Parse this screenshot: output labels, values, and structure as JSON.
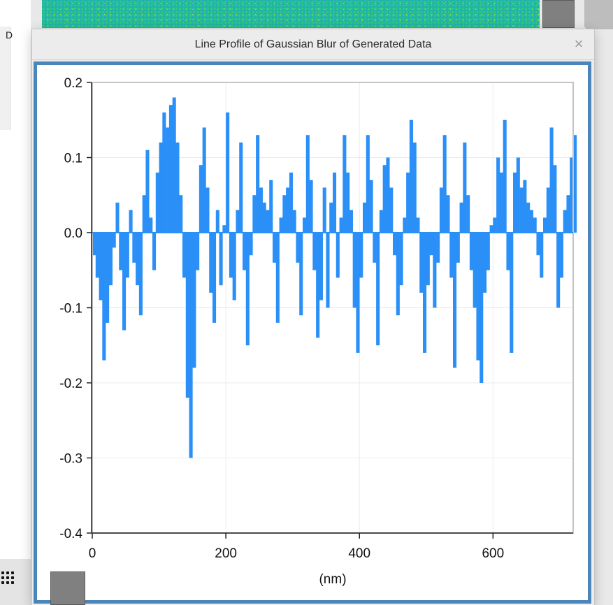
{
  "background": {
    "left_panel_letter": "D"
  },
  "window": {
    "title": "Line Profile of Gaussian Blur of Generated Data",
    "close_glyph": "×",
    "frame_color": "#4a86ba"
  },
  "chart_data": {
    "type": "bar",
    "title": "",
    "xlabel": "(nm)",
    "ylabel": "",
    "xlim": [
      0,
      720
    ],
    "ylim": [
      -0.4,
      0.2
    ],
    "x_ticks": [
      0,
      200,
      400,
      600
    ],
    "y_ticks": [
      0.2,
      0.1,
      0.0,
      -0.1,
      -0.2,
      -0.3,
      -0.4
    ],
    "y_tick_labels": [
      "0.2",
      "0.1",
      "0.0",
      "-0.1",
      "-0.2",
      "-0.3",
      "-0.4"
    ],
    "grid": true,
    "bar_color": "#2a8ff7",
    "series": [
      {
        "x_step": 5,
        "values": [
          -0.03,
          -0.06,
          -0.09,
          -0.17,
          -0.12,
          -0.07,
          -0.02,
          0.04,
          -0.05,
          -0.13,
          -0.06,
          0.03,
          -0.04,
          -0.07,
          -0.11,
          0.05,
          0.11,
          0.02,
          -0.05,
          0.08,
          0.12,
          0.16,
          0.14,
          0.17,
          0.18,
          0.12,
          0.05,
          -0.06,
          -0.22,
          -0.3,
          -0.18,
          -0.05,
          0.09,
          0.14,
          0.06,
          -0.08,
          -0.12,
          0.03,
          -0.07,
          0.01,
          0.16,
          -0.06,
          -0.09,
          0.03,
          0.12,
          -0.05,
          -0.15,
          -0.03,
          0.05,
          0.13,
          0.06,
          0.04,
          0.03,
          0.07,
          -0.04,
          -0.12,
          0.02,
          0.05,
          0.06,
          0.08,
          0.03,
          -0.04,
          -0.11,
          0.02,
          0.13,
          0.07,
          -0.05,
          -0.14,
          -0.09,
          0.06,
          -0.1,
          0.04,
          0.08,
          -0.06,
          0.02,
          0.13,
          0.08,
          0.03,
          -0.1,
          -0.16,
          -0.06,
          0.04,
          0.13,
          0.07,
          -0.04,
          -0.15,
          0.03,
          0.09,
          0.1,
          0.06,
          -0.03,
          -0.11,
          -0.07,
          0.02,
          0.08,
          0.15,
          0.12,
          0.02,
          -0.08,
          -0.16,
          -0.07,
          -0.03,
          -0.1,
          -0.04,
          0.06,
          0.13,
          0.05,
          -0.06,
          -0.18,
          -0.04,
          0.04,
          0.12,
          0.05,
          -0.05,
          -0.1,
          -0.17,
          -0.2,
          -0.08,
          -0.05,
          0.01,
          0.02,
          0.1,
          0.08,
          0.15,
          -0.05,
          -0.16,
          0.08,
          0.1,
          0.06,
          0.07,
          0.04,
          0.03,
          0.02,
          -0.03,
          -0.06,
          0.02,
          0.06,
          0.14,
          0.09,
          -0.1,
          -0.06,
          0.03,
          0.05,
          0.1,
          0.13
        ]
      }
    ]
  }
}
